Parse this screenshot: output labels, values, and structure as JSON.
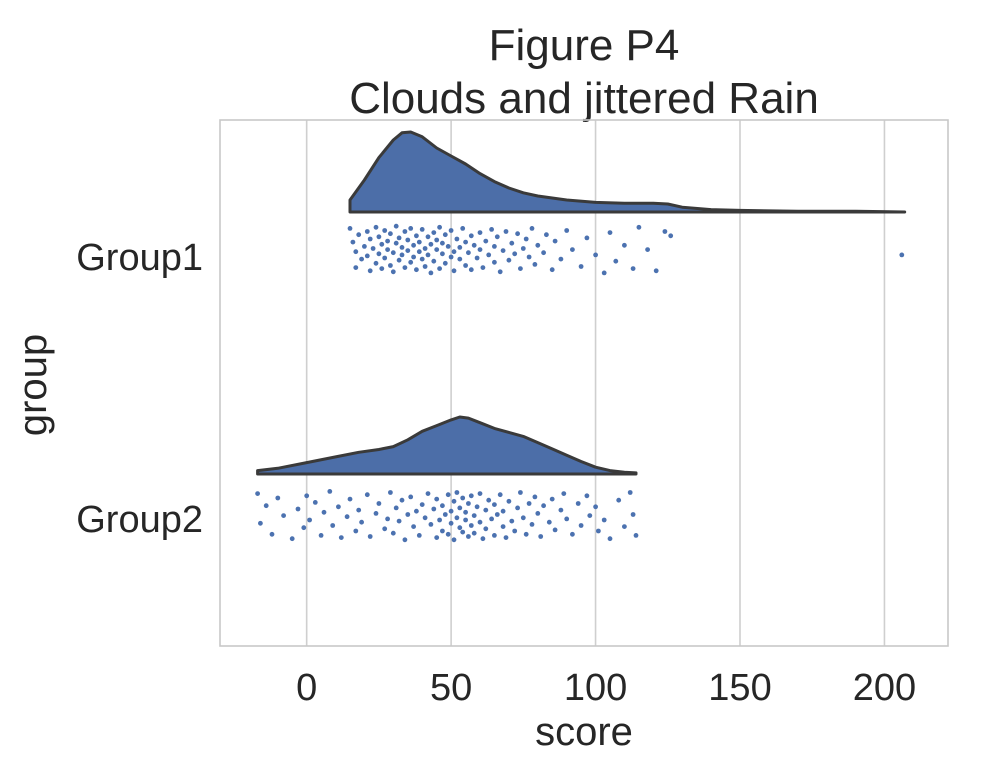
{
  "chart_data": {
    "type": "raincloud",
    "title_lines": [
      "Figure P4",
      "Clouds and jittered Rain"
    ],
    "xlabel": "score",
    "ylabel": "group",
    "xlim": [
      -30,
      222
    ],
    "xticks": [
      0,
      50,
      100,
      150,
      200
    ],
    "categories": [
      "Group1",
      "Group2"
    ],
    "grid": "vertical",
    "colors": {
      "cloud": "#4c6ea8",
      "rain": "#4c72b0",
      "outline": "#3a3a3a",
      "grid": "#cfcfcf"
    },
    "series": [
      {
        "category": "Group1",
        "density": {
          "x": [
            15,
            20,
            25,
            30,
            33,
            36,
            40,
            45,
            50,
            55,
            60,
            65,
            70,
            75,
            80,
            90,
            100,
            110,
            120,
            125,
            130,
            140,
            150,
            170,
            190,
            207
          ],
          "y": [
            0.15,
            0.4,
            0.68,
            0.9,
            0.99,
            1.0,
            0.94,
            0.8,
            0.7,
            0.6,
            0.48,
            0.38,
            0.3,
            0.24,
            0.2,
            0.15,
            0.12,
            0.11,
            0.11,
            0.1,
            0.06,
            0.03,
            0.02,
            0.01,
            0.01,
            0.0
          ]
        },
        "points": [
          [
            15,
            0.12
          ],
          [
            16,
            0.38
          ],
          [
            17,
            0.56
          ],
          [
            17,
            0.86
          ],
          [
            18,
            0.24
          ],
          [
            19,
            0.7
          ],
          [
            20,
            0.46
          ],
          [
            21,
            0.64
          ],
          [
            21,
            0.18
          ],
          [
            22,
            0.92
          ],
          [
            22,
            0.32
          ],
          [
            23,
            0.5
          ],
          [
            24,
            0.78
          ],
          [
            24,
            0.1
          ],
          [
            25,
            0.6
          ],
          [
            25,
            0.28
          ],
          [
            26,
            0.42
          ],
          [
            26,
            0.88
          ],
          [
            27,
            0.68
          ],
          [
            27,
            0.16
          ],
          [
            28,
            0.52
          ],
          [
            28,
            0.36
          ],
          [
            29,
            0.82
          ],
          [
            29,
            0.22
          ],
          [
            30,
            0.58
          ],
          [
            30,
            0.94
          ],
          [
            31,
            0.4
          ],
          [
            31,
            0.08
          ],
          [
            32,
            0.72
          ],
          [
            32,
            0.3
          ],
          [
            33,
            0.48
          ],
          [
            33,
            0.62
          ],
          [
            34,
            0.18
          ],
          [
            34,
            0.86
          ],
          [
            35,
            0.54
          ],
          [
            35,
            0.34
          ],
          [
            36,
            0.76
          ],
          [
            36,
            0.12
          ],
          [
            37,
            0.44
          ],
          [
            37,
            0.66
          ],
          [
            38,
            0.26
          ],
          [
            38,
            0.9
          ],
          [
            39,
            0.56
          ],
          [
            39,
            0.38
          ],
          [
            40,
            0.7
          ],
          [
            40,
            0.14
          ],
          [
            41,
            0.5
          ],
          [
            41,
            0.84
          ],
          [
            42,
            0.28
          ],
          [
            42,
            0.62
          ],
          [
            43,
            0.42
          ],
          [
            43,
            0.96
          ],
          [
            44,
            0.2
          ],
          [
            44,
            0.74
          ],
          [
            45,
            0.52
          ],
          [
            45,
            0.34
          ],
          [
            46,
            0.88
          ],
          [
            46,
            0.1
          ],
          [
            47,
            0.6
          ],
          [
            47,
            0.4
          ],
          [
            48,
            0.78
          ],
          [
            48,
            0.24
          ],
          [
            49,
            0.46
          ],
          [
            50,
            0.66
          ],
          [
            50,
            0.16
          ],
          [
            51,
            0.56
          ],
          [
            51,
            0.92
          ],
          [
            52,
            0.32
          ],
          [
            53,
            0.7
          ],
          [
            53,
            0.48
          ],
          [
            54,
            0.12
          ],
          [
            55,
            0.82
          ],
          [
            55,
            0.38
          ],
          [
            56,
            0.58
          ],
          [
            57,
            0.26
          ],
          [
            57,
            0.9
          ],
          [
            58,
            0.44
          ],
          [
            59,
            0.68
          ],
          [
            60,
            0.2
          ],
          [
            60,
            0.52
          ],
          [
            61,
            0.86
          ],
          [
            62,
            0.36
          ],
          [
            63,
            0.62
          ],
          [
            64,
            0.14
          ],
          [
            65,
            0.76
          ],
          [
            65,
            0.46
          ],
          [
            66,
            0.28
          ],
          [
            67,
            0.94
          ],
          [
            68,
            0.54
          ],
          [
            69,
            0.18
          ],
          [
            70,
            0.72
          ],
          [
            71,
            0.4
          ],
          [
            72,
            0.6
          ],
          [
            73,
            0.22
          ],
          [
            74,
            0.88
          ],
          [
            75,
            0.5
          ],
          [
            76,
            0.32
          ],
          [
            77,
            0.66
          ],
          [
            78,
            0.12
          ],
          [
            79,
            0.8
          ],
          [
            80,
            0.44
          ],
          [
            82,
            0.58
          ],
          [
            83,
            0.24
          ],
          [
            85,
            0.9
          ],
          [
            86,
            0.36
          ],
          [
            88,
            0.7
          ],
          [
            90,
            0.16
          ],
          [
            92,
            0.52
          ],
          [
            95,
            0.84
          ],
          [
            97,
            0.3
          ],
          [
            100,
            0.62
          ],
          [
            103,
            0.96
          ],
          [
            105,
            0.2
          ],
          [
            107,
            0.74
          ],
          [
            110,
            0.44
          ],
          [
            113,
            0.88
          ],
          [
            115,
            0.1
          ],
          [
            118,
            0.52
          ],
          [
            121,
            0.92
          ],
          [
            124,
            0.18
          ],
          [
            126,
            0.26
          ],
          [
            206,
            0.62
          ]
        ]
      },
      {
        "category": "Group2",
        "density": {
          "x": [
            -17,
            -10,
            0,
            10,
            18,
            25,
            30,
            35,
            40,
            45,
            50,
            53,
            56,
            60,
            65,
            70,
            75,
            80,
            85,
            90,
            95,
            100,
            105,
            110,
            114
          ],
          "y": [
            0.06,
            0.1,
            0.2,
            0.3,
            0.38,
            0.43,
            0.48,
            0.6,
            0.75,
            0.85,
            0.95,
            1.0,
            0.98,
            0.9,
            0.8,
            0.73,
            0.66,
            0.55,
            0.44,
            0.33,
            0.22,
            0.12,
            0.06,
            0.03,
            0.02
          ]
        },
        "points": [
          [
            -17,
            0.12
          ],
          [
            -16,
            0.66
          ],
          [
            -14,
            0.34
          ],
          [
            -12,
            0.86
          ],
          [
            -10,
            0.2
          ],
          [
            -8,
            0.52
          ],
          [
            -5,
            0.94
          ],
          [
            -3,
            0.4
          ],
          [
            -1,
            0.74
          ],
          [
            0,
            0.16
          ],
          [
            1,
            0.6
          ],
          [
            3,
            0.28
          ],
          [
            5,
            0.88
          ],
          [
            6,
            0.46
          ],
          [
            8,
            0.08
          ],
          [
            9,
            0.7
          ],
          [
            11,
            0.36
          ],
          [
            12,
            0.92
          ],
          [
            14,
            0.54
          ],
          [
            15,
            0.22
          ],
          [
            17,
            0.8
          ],
          [
            18,
            0.42
          ],
          [
            19,
            0.64
          ],
          [
            21,
            0.14
          ],
          [
            22,
            0.9
          ],
          [
            24,
            0.48
          ],
          [
            25,
            0.3
          ],
          [
            27,
            0.76
          ],
          [
            28,
            0.58
          ],
          [
            29,
            0.1
          ],
          [
            30,
            0.84
          ],
          [
            31,
            0.38
          ],
          [
            32,
            0.62
          ],
          [
            33,
            0.24
          ],
          [
            34,
            0.96
          ],
          [
            35,
            0.5
          ],
          [
            36,
            0.18
          ],
          [
            37,
            0.72
          ],
          [
            38,
            0.44
          ],
          [
            39,
            0.88
          ],
          [
            40,
            0.32
          ],
          [
            41,
            0.56
          ],
          [
            42,
            0.12
          ],
          [
            43,
            0.68
          ],
          [
            44,
            0.4
          ],
          [
            45,
            0.92
          ],
          [
            45,
            0.22
          ],
          [
            46,
            0.6
          ],
          [
            47,
            0.8
          ],
          [
            47,
            0.34
          ],
          [
            48,
            0.5
          ],
          [
            49,
            0.14
          ],
          [
            49,
            0.86
          ],
          [
            50,
            0.44
          ],
          [
            50,
            0.66
          ],
          [
            51,
            0.26
          ],
          [
            51,
            0.96
          ],
          [
            52,
            0.56
          ],
          [
            52,
            0.1
          ],
          [
            53,
            0.74
          ],
          [
            53,
            0.38
          ],
          [
            54,
            0.82
          ],
          [
            54,
            0.2
          ],
          [
            55,
            0.6
          ],
          [
            55,
            0.46
          ],
          [
            56,
            0.9
          ],
          [
            56,
            0.3
          ],
          [
            57,
            0.7
          ],
          [
            57,
            0.16
          ],
          [
            58,
            0.52
          ],
          [
            58,
            0.84
          ],
          [
            59,
            0.36
          ],
          [
            60,
            0.64
          ],
          [
            60,
            0.12
          ],
          [
            61,
            0.94
          ],
          [
            62,
            0.42
          ],
          [
            62,
            0.76
          ],
          [
            63,
            0.24
          ],
          [
            64,
            0.58
          ],
          [
            65,
            0.88
          ],
          [
            65,
            0.32
          ],
          [
            66,
            0.5
          ],
          [
            67,
            0.14
          ],
          [
            68,
            0.72
          ],
          [
            68,
            0.44
          ],
          [
            69,
            0.92
          ],
          [
            70,
            0.26
          ],
          [
            71,
            0.62
          ],
          [
            72,
            0.8
          ],
          [
            73,
            0.38
          ],
          [
            74,
            0.1
          ],
          [
            75,
            0.56
          ],
          [
            76,
            0.86
          ],
          [
            77,
            0.3
          ],
          [
            78,
            0.68
          ],
          [
            79,
            0.18
          ],
          [
            80,
            0.48
          ],
          [
            81,
            0.9
          ],
          [
            82,
            0.34
          ],
          [
            84,
            0.64
          ],
          [
            85,
            0.22
          ],
          [
            86,
            0.78
          ],
          [
            88,
            0.42
          ],
          [
            89,
            0.12
          ],
          [
            90,
            0.58
          ],
          [
            92,
            0.86
          ],
          [
            94,
            0.3
          ],
          [
            95,
            0.7
          ],
          [
            97,
            0.16
          ],
          [
            98,
            0.52
          ],
          [
            100,
            0.36
          ],
          [
            101,
            0.8
          ],
          [
            103,
            0.6
          ],
          [
            105,
            0.94
          ],
          [
            108,
            0.24
          ],
          [
            110,
            0.72
          ],
          [
            112,
            0.1
          ],
          [
            113,
            0.5
          ],
          [
            114,
            0.88
          ]
        ]
      }
    ]
  }
}
